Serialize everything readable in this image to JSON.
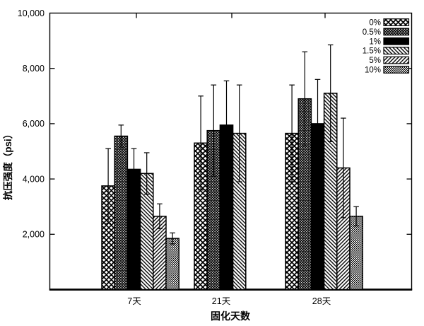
{
  "chart_data": {
    "type": "bar",
    "title": "",
    "xlabel": "固化天数",
    "ylabel": "抗压强度（psi）",
    "ylim": [
      0,
      10000
    ],
    "yticks": [
      2000,
      4000,
      6000,
      8000,
      10000
    ],
    "ytick_labels": [
      "2,000",
      "4,000",
      "6,000",
      "8,000",
      "10,000"
    ],
    "categories": [
      "7天",
      "21天",
      "28天"
    ],
    "legend_position": "top-right-inside",
    "grid": "off",
    "error_bars": "symmetric-with-caps",
    "series": [
      {
        "name": "0%",
        "pattern": "crosshatch-wide",
        "values": [
          3750,
          5300,
          5650
        ],
        "errors": [
          1350,
          1700,
          1750
        ]
      },
      {
        "name": "0.5%",
        "pattern": "crosshatch-dense",
        "values": [
          5550,
          5750,
          6900
        ],
        "errors": [
          400,
          1650,
          1700
        ]
      },
      {
        "name": "1%",
        "pattern": "solid-black",
        "values": [
          4350,
          5950,
          6000
        ],
        "errors": [
          750,
          1600,
          1600
        ]
      },
      {
        "name": "1.5%",
        "pattern": "diagonal-backslash",
        "values": [
          4200,
          5650,
          7100
        ],
        "errors": [
          750,
          1750,
          1750
        ]
      },
      {
        "name": "5%",
        "pattern": "diagonal-slash",
        "values": [
          2650,
          null,
          4400
        ],
        "errors": [
          450,
          null,
          1800
        ]
      },
      {
        "name": "10%",
        "pattern": "fine-checkerboard",
        "values": [
          1850,
          null,
          2650
        ],
        "errors": [
          200,
          null,
          350
        ]
      }
    ],
    "colors": {
      "foreground": "#000000",
      "background": "#ffffff"
    }
  }
}
